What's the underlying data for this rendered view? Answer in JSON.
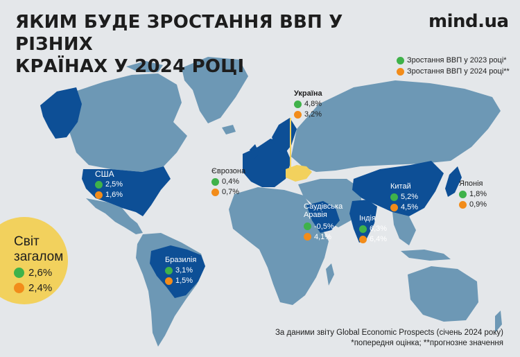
{
  "header": {
    "title_line1": "ЯКИМ БУДЕ ЗРОСТАННЯ ВВП У РІЗНИХ",
    "title_line2": "КРАЇНАХ У 2024 РОЦІ",
    "brand": "mind.ua"
  },
  "legend": {
    "gdp_2023": "Зростання ВВП у 2023 році*",
    "gdp_2024": "Зростання ВВП у 2024 році**"
  },
  "colors": {
    "background": "#e4e7ea",
    "land": "#6d98b5",
    "highlight": "#0d4f96",
    "ukraine": "#f2d15d",
    "growth_2023": "#3fb24a",
    "growth_2024": "#f28c1a"
  },
  "countries": [
    {
      "name": "Україна",
      "gdp_2023": "4,8%",
      "gdp_2024": "3,2%"
    },
    {
      "name": "США",
      "gdp_2023": "2,5%",
      "gdp_2024": "1,6%"
    },
    {
      "name": "Єврозона",
      "gdp_2023": "0,4%",
      "gdp_2024": "0,7%"
    },
    {
      "name": "Саудівська Аравія",
      "gdp_2023": "-0,5%",
      "gdp_2024": "4,1%"
    },
    {
      "name": "Китай",
      "gdp_2023": "5,2%",
      "gdp_2024": "4,5%"
    },
    {
      "name": "Японія",
      "gdp_2023": "1,8%",
      "gdp_2024": "0,9%"
    },
    {
      "name": "Індія",
      "gdp_2023": "6,3%",
      "gdp_2024": "6,4%"
    },
    {
      "name": "Бразилія",
      "gdp_2023": "3,1%",
      "gdp_2024": "1,5%"
    }
  ],
  "world": {
    "title_line1": "Світ",
    "title_line2": "загалом",
    "gdp_2023": "2,6%",
    "gdp_2024": "2,4%"
  },
  "source": {
    "line1": "За даними звіту Global Economic Prospects (січень 2024 року)",
    "line2": "*попередня оцінка; **прогнозне значення"
  }
}
